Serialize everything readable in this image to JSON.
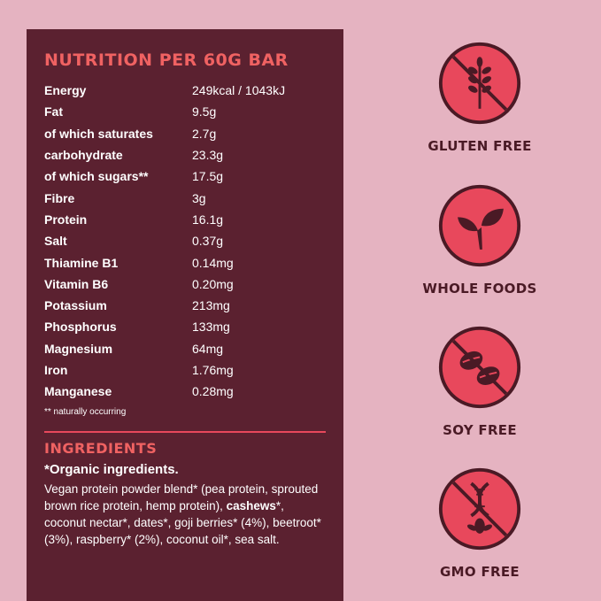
{
  "nutrition": {
    "title": "NUTRITION PER 60G BAR",
    "rows": [
      {
        "name": "Energy",
        "value": "249kcal / 1043kJ"
      },
      {
        "name": "Fat",
        "value": "9.5g"
      },
      {
        "name": "of which saturates",
        "value": "2.7g"
      },
      {
        "name": "carbohydrate",
        "value": "23.3g"
      },
      {
        "name": "of which sugars**",
        "value": "17.5g"
      },
      {
        "name": "Fibre",
        "value": "3g"
      },
      {
        "name": "Protein",
        "value": "16.1g"
      },
      {
        "name": "Salt",
        "value": "0.37g"
      },
      {
        "name": "Thiamine B1",
        "value": "0.14mg"
      },
      {
        "name": "Vitamin B6",
        "value": "0.20mg"
      },
      {
        "name": "Potassium",
        "value": "213mg"
      },
      {
        "name": "Phosphorus",
        "value": "133mg"
      },
      {
        "name": "Magnesium",
        "value": "64mg"
      },
      {
        "name": "Iron",
        "value": "1.76mg"
      },
      {
        "name": "Manganese",
        "value": "0.28mg"
      }
    ],
    "footnote": "** naturally occurring"
  },
  "ingredients": {
    "title": "INGREDIENTS",
    "subtitle": "*Organic ingredients.",
    "text_before": "Vegan protein powder blend* (pea protein, sprouted brown rice protein, hemp protein), ",
    "bold": "cashews",
    "text_after": "*, coconut nectar*, dates*, goji berries* (4%), beetroot* (3%), raspberry* (2%), coconut oil*, sea salt."
  },
  "badges": [
    {
      "label": "GLUTEN FREE",
      "icon": "wheat-crossed-icon"
    },
    {
      "label": "WHOLE FOODS",
      "icon": "leaf-sprout-icon"
    },
    {
      "label": "SOY FREE",
      "icon": "soybean-crossed-icon"
    },
    {
      "label": "GMO FREE",
      "icon": "dna-crossed-icon"
    }
  ],
  "colors": {
    "background": "#e5b3c1",
    "panel": "#5b2130",
    "accent": "#f06262",
    "badge_fill": "#e8485c",
    "badge_dark": "#4a1a25"
  }
}
